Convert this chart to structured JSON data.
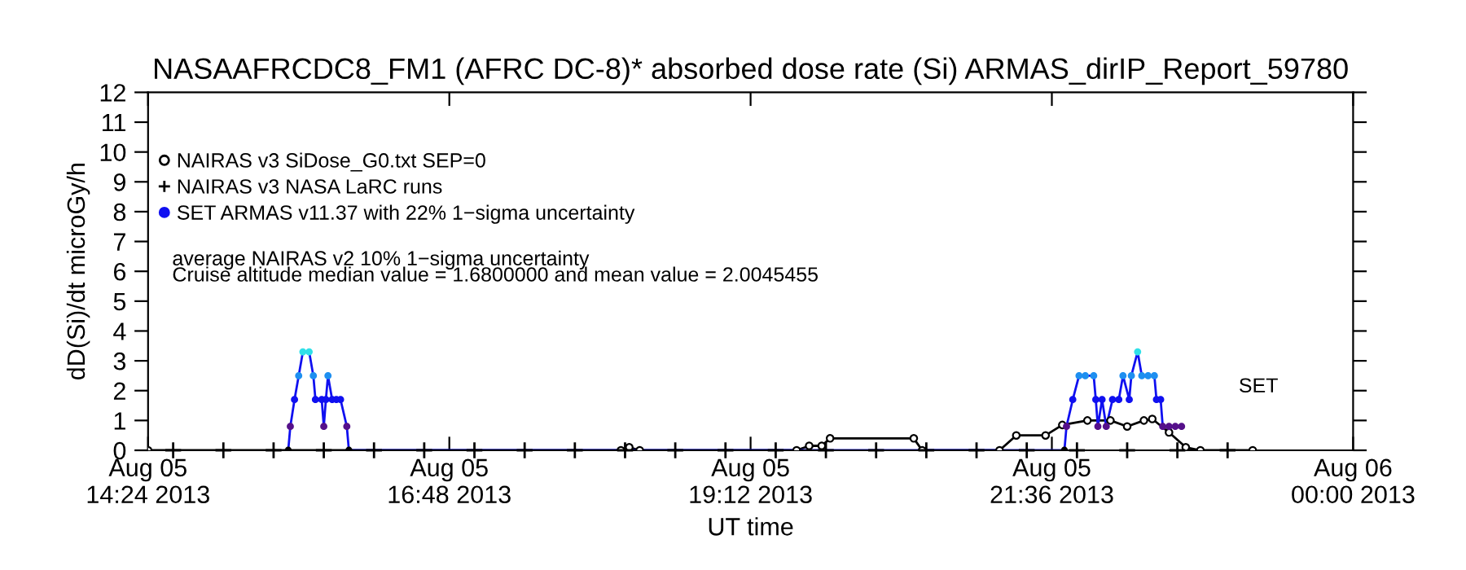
{
  "chart_data": {
    "type": "line",
    "title": "NASAAFRCDC8_FM1 (AFRC DC-8)* absorbed dose rate (Si) ARMAS_dirIP_Report_59780",
    "xlabel": "UT time",
    "ylabel": "dD(Si)/dt microGy/h",
    "xlim": [
      "2013-08-05T14:24",
      "2013-08-06T00:00"
    ],
    "xticks": [
      {
        "value": "2013-08-05T14:24",
        "label": "Aug 05\n14:24 2013"
      },
      {
        "value": "2013-08-05T16:48",
        "label": "Aug 05\n16:48 2013"
      },
      {
        "value": "2013-08-05T19:12",
        "label": "Aug 05\n19:12 2013"
      },
      {
        "value": "2013-08-05T21:36",
        "label": "Aug 05\n21:36 2013"
      },
      {
        "value": "2013-08-06T00:00",
        "label": "Aug 06\n00:00 2013"
      }
    ],
    "ylim": [
      0,
      12
    ],
    "yticks": [
      0,
      1,
      2,
      3,
      4,
      5,
      6,
      7,
      8,
      9,
      10,
      11,
      12
    ],
    "legend": "top left",
    "series": [
      {
        "name": "NAIRAS v3 SiDose_G0.txt SEP=0",
        "marker": "circle",
        "color": "#000000",
        "x": [
          "2013-08-05T14:24",
          "2013-08-05T18:10",
          "2013-08-05T18:14",
          "2013-08-05T18:19",
          "2013-08-05T19:34",
          "2013-08-05T19:40",
          "2013-08-05T19:46",
          "2013-08-05T19:50",
          "2013-08-05T20:30",
          "2013-08-05T20:34",
          "2013-08-05T21:11",
          "2013-08-05T21:19",
          "2013-08-05T21:33",
          "2013-08-05T21:41",
          "2013-08-05T21:53",
          "2013-08-05T22:04",
          "2013-08-05T22:12",
          "2013-08-05T22:20",
          "2013-08-05T22:24",
          "2013-08-05T22:32",
          "2013-08-05T22:40",
          "2013-08-05T22:47",
          "2013-08-05T23:12"
        ],
        "values": [
          0,
          0,
          0.1,
          0,
          0,
          0.15,
          0.15,
          0.4,
          0.4,
          0,
          0,
          0.5,
          0.5,
          0.85,
          1.0,
          1.0,
          0.8,
          1.0,
          1.05,
          0.6,
          0.1,
          0,
          0
        ]
      },
      {
        "name": "NAIRAS v3 NASA LaRC runs",
        "type": "scatter",
        "marker": "cross",
        "color": "#000000",
        "x": [
          "2013-08-05T14:36",
          "2013-08-05T15:00",
          "2013-08-05T15:24",
          "2013-08-05T15:48",
          "2013-08-05T16:12",
          "2013-08-05T16:36",
          "2013-08-05T17:00",
          "2013-08-05T17:24",
          "2013-08-05T17:48",
          "2013-08-05T18:12",
          "2013-08-05T18:36",
          "2013-08-05T19:00",
          "2013-08-05T19:24",
          "2013-08-05T19:48",
          "2013-08-05T20:12",
          "2013-08-05T20:36",
          "2013-08-05T21:00",
          "2013-08-05T21:24",
          "2013-08-05T21:48",
          "2013-08-05T22:12",
          "2013-08-05T22:36",
          "2013-08-05T23:00"
        ],
        "values": [
          0,
          0,
          0,
          0,
          0,
          0,
          0,
          0,
          0,
          0,
          0,
          0,
          0,
          0,
          0,
          0,
          0,
          0,
          0,
          0,
          0,
          0
        ]
      },
      {
        "name": "SET ARMAS v11.37 with 22% 1−sigma uncertainty",
        "marker": "circle",
        "color": "#1010f0",
        "x": [
          "2013-08-05T15:31",
          "2013-08-05T15:32",
          "2013-08-05T15:34",
          "2013-08-05T15:36",
          "2013-08-05T15:38",
          "2013-08-05T15:41",
          "2013-08-05T15:43",
          "2013-08-05T15:44",
          "2013-08-05T15:47",
          "2013-08-05T15:48",
          "2013-08-05T15:49",
          "2013-08-05T15:50",
          "2013-08-05T15:52",
          "2013-08-05T15:54",
          "2013-08-05T15:56",
          "2013-08-05T15:59",
          "2013-08-05T16:00",
          "2013-08-05T21:42",
          "2013-08-05T21:43",
          "2013-08-05T21:46",
          "2013-08-05T21:49",
          "2013-08-05T21:52",
          "2013-08-05T21:56",
          "2013-08-05T21:57",
          "2013-08-05T21:58",
          "2013-08-05T22:00",
          "2013-08-05T22:02",
          "2013-08-05T22:05",
          "2013-08-05T22:08",
          "2013-08-05T22:10",
          "2013-08-05T22:13",
          "2013-08-05T22:14",
          "2013-08-05T22:17",
          "2013-08-05T22:19",
          "2013-08-05T22:22",
          "2013-08-05T22:25",
          "2013-08-05T22:26",
          "2013-08-05T22:28",
          "2013-08-05T22:29",
          "2013-08-05T22:32",
          "2013-08-05T22:35",
          "2013-08-05T22:38"
        ],
        "values": [
          0,
          0.8,
          1.7,
          2.5,
          3.3,
          3.3,
          2.5,
          1.7,
          1.7,
          0.8,
          1.7,
          2.5,
          1.7,
          1.7,
          1.7,
          0.8,
          0,
          0,
          0.8,
          1.7,
          2.5,
          2.5,
          2.5,
          1.7,
          0.8,
          1.7,
          0.8,
          1.7,
          1.7,
          2.5,
          1.7,
          2.5,
          3.3,
          2.5,
          2.5,
          2.5,
          1.7,
          1.7,
          0.8,
          0.8,
          0.8,
          0.8
        ],
        "colors": [
          "#000000",
          "#55108a",
          "#1010f0",
          "#1e8ff0",
          "#30e0e8",
          "#30e0e8",
          "#1e8ff0",
          "#1010f0",
          "#1010f0",
          "#55108a",
          "#1010f0",
          "#1e8ff0",
          "#1010f0",
          "#1010f0",
          "#1010f0",
          "#55108a",
          "#000000",
          "#000000",
          "#55108a",
          "#1010f0",
          "#1e8ff0",
          "#1e8ff0",
          "#1e8ff0",
          "#1010f0",
          "#55108a",
          "#1010f0",
          "#55108a",
          "#1010f0",
          "#1010f0",
          "#1e8ff0",
          "#1010f0",
          "#1e8ff0",
          "#30e0e8",
          "#1e8ff0",
          "#1e8ff0",
          "#1e8ff0",
          "#1010f0",
          "#1010f0",
          "#55108a",
          "#55108a",
          "#55108a",
          "#55108a"
        ]
      }
    ],
    "annotations": [
      "average NAIRAS v2 10% 1−sigma uncertainty",
      "Cruise altitude median value = 1.6800000 and mean value = 2.0045455",
      "SET"
    ]
  }
}
